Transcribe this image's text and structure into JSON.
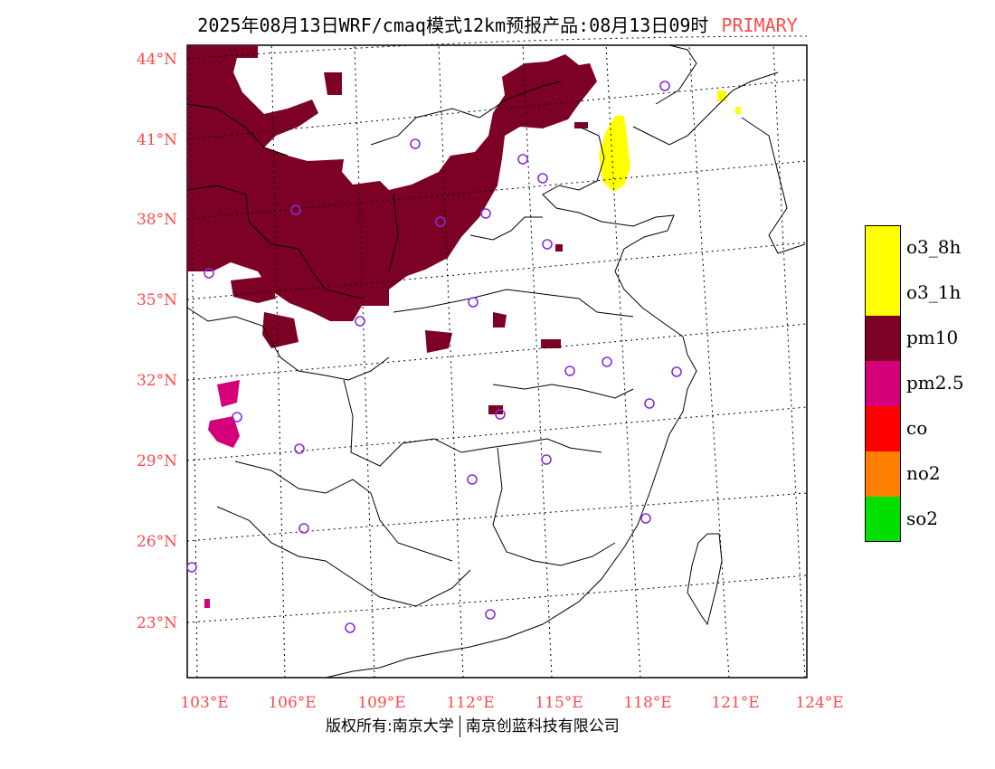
{
  "title": {
    "main": "2025年08月13日WRF/cmaq模式12km预报产品:08月13日09时",
    "tag": "PRIMARY"
  },
  "lat_labels": [
    "44°N",
    "41°N",
    "38°N",
    "35°N",
    "32°N",
    "29°N",
    "26°N",
    "23°N"
  ],
  "lon_labels": [
    "103°E",
    "106°E",
    "109°E",
    "112°E",
    "115°E",
    "118°E",
    "121°E",
    "124°E"
  ],
  "legend": [
    {
      "label": "o3_8h",
      "color": "#ffff00"
    },
    {
      "label": "o3_1h",
      "color": "#ffff00"
    },
    {
      "label": "pm10",
      "color": "#7d0025"
    },
    {
      "label": "pm2.5",
      "color": "#d4007a"
    },
    {
      "label": "co",
      "color": "#ff0000"
    },
    {
      "label": "no2",
      "color": "#ff8000"
    },
    {
      "label": "so2",
      "color": "#00e000"
    }
  ],
  "footer": {
    "left": "版权所有:南京大学",
    "right": "南京创蓝科技有限公司"
  },
  "colors": {
    "axis_label": "#ff4a4a",
    "station_marker": "#8a2be2",
    "pm10": "#7d0025",
    "pm25": "#d4007a",
    "o3": "#ffff00"
  }
}
